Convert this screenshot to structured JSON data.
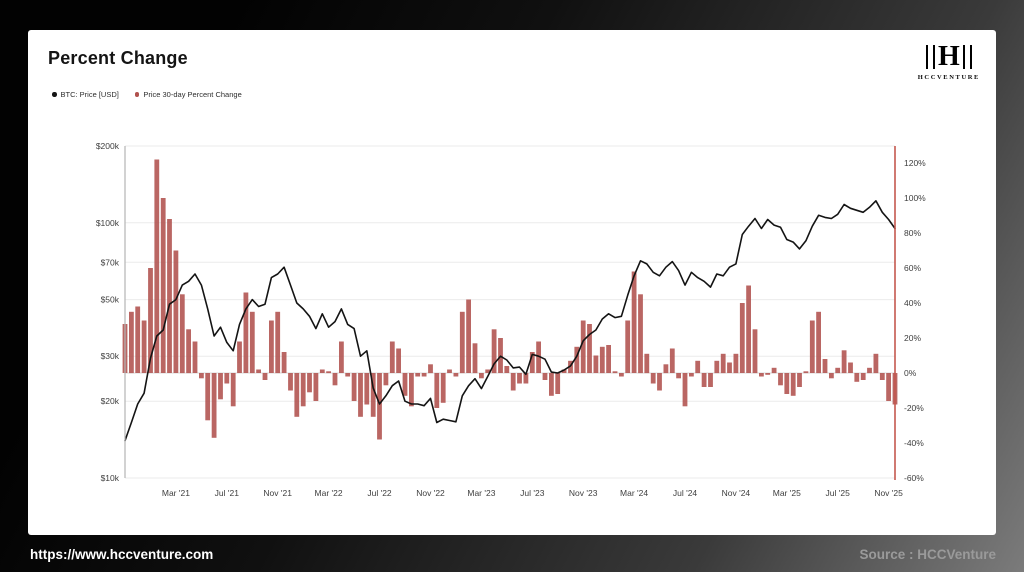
{
  "title": "Percent Change",
  "legend": {
    "items": [
      {
        "label": "BTC: Price [USD]",
        "color": "#151515"
      },
      {
        "label": "Price 30-day Percent Change",
        "color": "#b0514d"
      }
    ]
  },
  "logo": {
    "monogram": "H",
    "name": "HCCVENTURE"
  },
  "frame": {
    "url": "https://www.hccventure.com",
    "source": "Source : HCCVenture"
  },
  "chart_data": {
    "type": "mixed",
    "series_types": {
      "price_usd_k": "line",
      "pct30": "bar"
    },
    "x_start": "2020-11",
    "x_step_months": 0.5,
    "colors": {
      "line": "#141414",
      "bar": "#b0514d",
      "grid": "#ebebeb",
      "zero_line": "#d9d9d9",
      "axis_left": "#b5b5b5",
      "axis_right": "#c4584f"
    },
    "price_axis": {
      "side": "left",
      "scale": "log",
      "unit": "USD thousands",
      "min": 10,
      "max": 200,
      "ticks": [
        {
          "label": "$200k",
          "value": 200
        },
        {
          "label": "$100k",
          "value": 100
        },
        {
          "label": "$70k",
          "value": 70
        },
        {
          "label": "$50k",
          "value": 50
        },
        {
          "label": "$30k",
          "value": 30
        },
        {
          "label": "$20k",
          "value": 20
        },
        {
          "label": "$10k",
          "value": 10
        }
      ]
    },
    "pct_axis": {
      "side": "right",
      "min": -60,
      "max": 120,
      "ticks": [
        {
          "label": "120%",
          "value": 120
        },
        {
          "label": "100%",
          "value": 100
        },
        {
          "label": "80%",
          "value": 80
        },
        {
          "label": "60%",
          "value": 60
        },
        {
          "label": "40%",
          "value": 40
        },
        {
          "label": "20%",
          "value": 20
        },
        {
          "label": "0%",
          "value": 0
        },
        {
          "label": "-20%",
          "value": -20
        },
        {
          "label": "-40%",
          "value": -40
        },
        {
          "label": "-60%",
          "value": -60
        }
      ]
    },
    "x_axis": {
      "labels": [
        {
          "label": "Mar '21",
          "index": 8
        },
        {
          "label": "Jul '21",
          "index": 16
        },
        {
          "label": "Nov '21",
          "index": 24
        },
        {
          "label": "Mar '22",
          "index": 32
        },
        {
          "label": "Jul '22",
          "index": 40
        },
        {
          "label": "Nov '22",
          "index": 48
        },
        {
          "label": "Mar '23",
          "index": 56
        },
        {
          "label": "Jul '23",
          "index": 64
        },
        {
          "label": "Nov '23",
          "index": 72
        },
        {
          "label": "Mar '24",
          "index": 80
        },
        {
          "label": "Jul '24",
          "index": 88
        },
        {
          "label": "Nov '24",
          "index": 96
        },
        {
          "label": "Mar '25",
          "index": 104
        },
        {
          "label": "Jul '25",
          "index": 112
        },
        {
          "label": "Nov '25",
          "index": 120
        }
      ]
    },
    "series": {
      "price_usd_k": [
        14,
        16.5,
        19.5,
        21.5,
        29.5,
        36,
        38,
        48,
        50,
        57,
        59,
        63,
        57,
        46,
        36,
        39,
        34,
        31.5,
        40,
        46,
        50,
        47,
        48,
        61,
        63,
        67,
        57,
        48.5,
        46,
        43,
        38.5,
        44,
        39,
        41,
        46,
        40,
        38.5,
        30,
        31.5,
        22.5,
        19.5,
        21,
        23,
        24,
        20,
        19.5,
        19.5,
        19.2,
        20.5,
        16.5,
        17,
        16.8,
        16.6,
        21,
        23,
        24.5,
        22.4,
        25,
        28,
        30,
        29,
        27,
        27.2,
        25.5,
        30.5,
        30,
        29.2,
        26,
        25.8,
        26.5,
        27.5,
        30,
        34.5,
        36.5,
        38,
        42,
        44,
        42.5,
        43,
        52,
        62,
        71,
        69,
        64,
        62,
        67,
        70.5,
        65,
        57,
        64,
        61,
        59,
        56,
        63,
        62,
        67,
        69,
        90,
        97,
        104,
        95,
        103,
        98,
        96,
        86,
        84,
        79,
        85,
        97,
        107,
        105,
        104,
        108,
        118,
        114,
        112,
        110,
        115,
        122,
        110,
        103,
        95
      ],
      "pct30": [
        28,
        35,
        38,
        30,
        60,
        122,
        100,
        88,
        70,
        45,
        25,
        18,
        -3,
        -27,
        -37,
        -15,
        -6,
        -19,
        18,
        46,
        35,
        2,
        -4,
        30,
        35,
        12,
        -10,
        -25,
        -19,
        -11,
        -16,
        2,
        1,
        -7,
        18,
        -2,
        -16,
        -25,
        -18,
        -25,
        -38,
        -7,
        18,
        14,
        -13,
        -19,
        -2,
        -2,
        5,
        -20,
        -17,
        2,
        -2,
        35,
        42,
        17,
        -3,
        2,
        25,
        20,
        4,
        -10,
        -6,
        -6,
        12,
        18,
        -4,
        -13,
        -12,
        2,
        7,
        15,
        30,
        28,
        10,
        15,
        16,
        1,
        -2,
        30,
        58,
        45,
        11,
        -6,
        -10,
        5,
        14,
        -3,
        -19,
        -2,
        7,
        -8,
        -8,
        7,
        11,
        6,
        11,
        40,
        50,
        25,
        -2,
        -1,
        3,
        -7,
        -12,
        -13,
        -8,
        1,
        30,
        35,
        8,
        -3,
        3,
        13,
        6,
        -5,
        -4,
        3,
        11,
        -4,
        -16,
        -18
      ]
    }
  }
}
